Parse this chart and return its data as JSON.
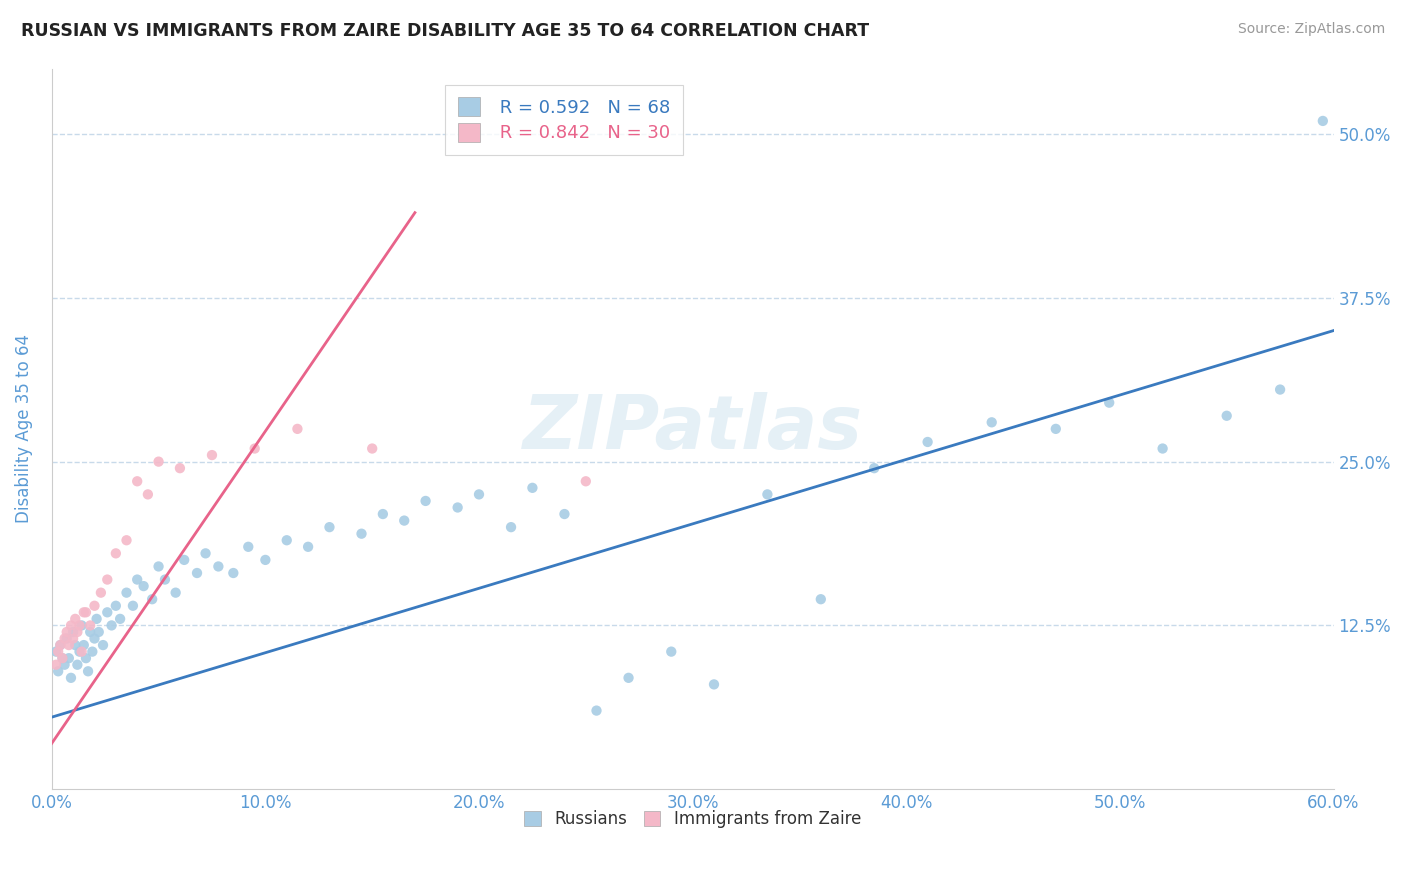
{
  "title": "RUSSIAN VS IMMIGRANTS FROM ZAIRE DISABILITY AGE 35 TO 64 CORRELATION CHART",
  "source": "Source: ZipAtlas.com",
  "ylabel_label": "Disability Age 35 to 64",
  "legend_r1": "R = 0.592",
  "legend_n1": "N = 68",
  "legend_r2": "R = 0.842",
  "legend_n2": "N = 30",
  "blue_color": "#a8cce4",
  "pink_color": "#f4b8c8",
  "blue_line_color": "#3a7abf",
  "pink_line_color": "#e8638a",
  "tick_color": "#5b9bd5",
  "grid_color": "#c8daea",
  "russians_x": [
    0.2,
    0.3,
    0.4,
    0.5,
    0.6,
    0.7,
    0.8,
    0.9,
    1.0,
    1.1,
    1.2,
    1.3,
    1.4,
    1.5,
    1.6,
    1.7,
    1.8,
    1.9,
    2.0,
    2.1,
    2.2,
    2.4,
    2.6,
    2.8,
    3.0,
    3.2,
    3.5,
    3.8,
    4.0,
    4.3,
    4.7,
    5.0,
    5.3,
    5.8,
    6.2,
    6.8,
    7.2,
    7.8,
    8.5,
    9.2,
    10.0,
    11.0,
    12.0,
    13.0,
    14.5,
    15.5,
    16.5,
    17.5,
    19.0,
    20.0,
    21.5,
    22.5,
    24.0,
    25.5,
    27.0,
    29.0,
    31.0,
    33.5,
    36.0,
    38.5,
    41.0,
    44.0,
    47.0,
    49.5,
    52.0,
    55.0,
    57.5,
    59.5
  ],
  "russians_y": [
    10.5,
    9.0,
    11.0,
    10.0,
    9.5,
    11.5,
    10.0,
    8.5,
    12.0,
    11.0,
    9.5,
    10.5,
    12.5,
    11.0,
    10.0,
    9.0,
    12.0,
    10.5,
    11.5,
    13.0,
    12.0,
    11.0,
    13.5,
    12.5,
    14.0,
    13.0,
    15.0,
    14.0,
    16.0,
    15.5,
    14.5,
    17.0,
    16.0,
    15.0,
    17.5,
    16.5,
    18.0,
    17.0,
    16.5,
    18.5,
    17.5,
    19.0,
    18.5,
    20.0,
    19.5,
    21.0,
    20.5,
    22.0,
    21.5,
    22.5,
    20.0,
    23.0,
    21.0,
    6.0,
    8.5,
    10.5,
    8.0,
    22.5,
    14.5,
    24.5,
    26.5,
    28.0,
    27.5,
    29.5,
    26.0,
    28.5,
    30.5,
    51.0
  ],
  "zaire_x": [
    0.2,
    0.3,
    0.4,
    0.5,
    0.6,
    0.7,
    0.8,
    0.9,
    1.0,
    1.1,
    1.2,
    1.4,
    1.6,
    1.8,
    2.0,
    2.3,
    2.6,
    3.0,
    3.5,
    4.0,
    5.0,
    6.0,
    7.5,
    9.5,
    11.5,
    15.0,
    25.0,
    4.5,
    1.5,
    1.3
  ],
  "zaire_y": [
    9.5,
    10.5,
    11.0,
    10.0,
    11.5,
    12.0,
    11.0,
    12.5,
    11.5,
    13.0,
    12.0,
    10.5,
    13.5,
    12.5,
    14.0,
    15.0,
    16.0,
    18.0,
    19.0,
    23.5,
    25.0,
    24.5,
    25.5,
    26.0,
    27.5,
    26.0,
    23.5,
    22.5,
    13.5,
    12.5
  ],
  "xmin": 0,
  "xmax": 60,
  "ymin": 0,
  "ymax": 55,
  "yticks": [
    12.5,
    25.0,
    37.5,
    50.0
  ],
  "xticks": [
    0,
    10,
    20,
    30,
    40,
    50,
    60
  ],
  "blue_regline_x": [
    0,
    60
  ],
  "blue_regline_y": [
    5.5,
    35.0
  ],
  "pink_regline_x": [
    0,
    17.0
  ],
  "pink_regline_y": [
    3.5,
    44.0
  ],
  "figwidth": 14.06,
  "figheight": 8.92,
  "dpi": 100
}
